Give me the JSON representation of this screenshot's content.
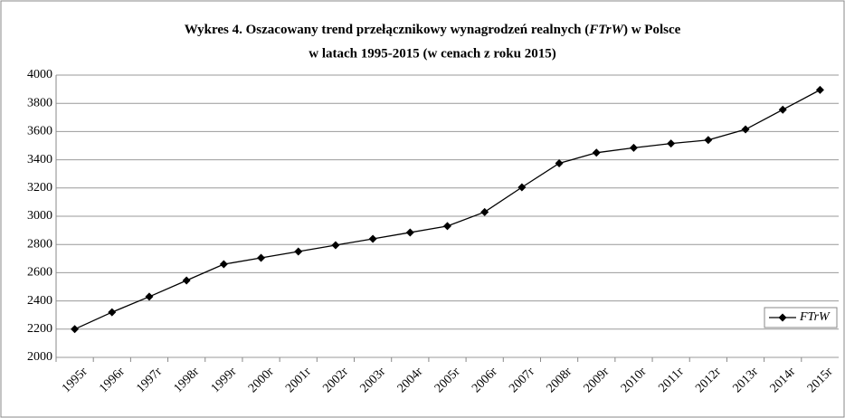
{
  "chart_data": {
    "type": "line",
    "title": [
      "Wykres 4. Oszacowany trend  przełącznikowy wynagrodzeń realnych (",
      "FTrW",
      ") w Polsce",
      "w latach 1995-2015 (w cenach z roku 2015)"
    ],
    "categories": [
      "1995r",
      "1996r",
      "1997r",
      "1998r",
      "1999r",
      "2000r",
      "2001r",
      "2002r",
      "2003r",
      "2004r",
      "2005r",
      "2006r",
      "2007r",
      "2008r",
      "2009r",
      "2010r",
      "2011r",
      "2012r",
      "2013r",
      "2014r",
      "2015r"
    ],
    "series": [
      {
        "name": "FTrW",
        "color": "#000000",
        "values": [
          2200,
          2320,
          2430,
          2545,
          2660,
          2705,
          2750,
          2795,
          2840,
          2885,
          2930,
          3030,
          3205,
          3375,
          3450,
          3485,
          3515,
          3540,
          3615,
          3755,
          3895
        ]
      }
    ],
    "ylim": [
      2000,
      4000
    ],
    "yticks": [
      2000,
      2200,
      2400,
      2600,
      2800,
      3000,
      3200,
      3400,
      3600,
      3800,
      4000
    ],
    "grid": true,
    "legend": "right"
  }
}
